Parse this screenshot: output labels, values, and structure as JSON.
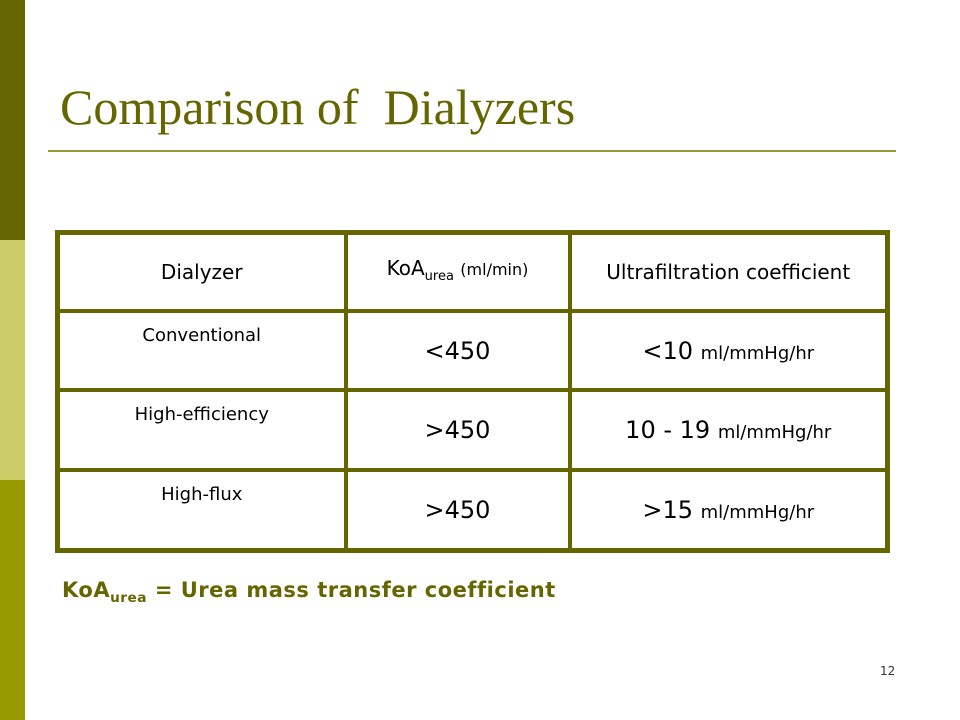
{
  "title": "Comparison of  Dialyzers",
  "table": {
    "header": [
      "Dialyzer",
      {
        "main": "KoA",
        "sub": "urea",
        "unit": "(ml/min)"
      },
      "Ultrafiltration coefficient"
    ],
    "rows": [
      [
        "Conventional",
        "<450",
        {
          "value": "<10",
          "unit": "ml/mmHg/hr"
        }
      ],
      [
        "High-efficiency",
        ">450",
        {
          "value": "10 - 19",
          "unit": "ml/mmHg/hr"
        }
      ],
      [
        "High-flux",
        ">450",
        {
          "value": ">15",
          "unit": "ml/mmHg/hr"
        }
      ]
    ]
  },
  "footnote": {
    "main": "KoA",
    "sub": "urea",
    "text": "= Urea mass transfer coefficient"
  },
  "page_number": "12"
}
